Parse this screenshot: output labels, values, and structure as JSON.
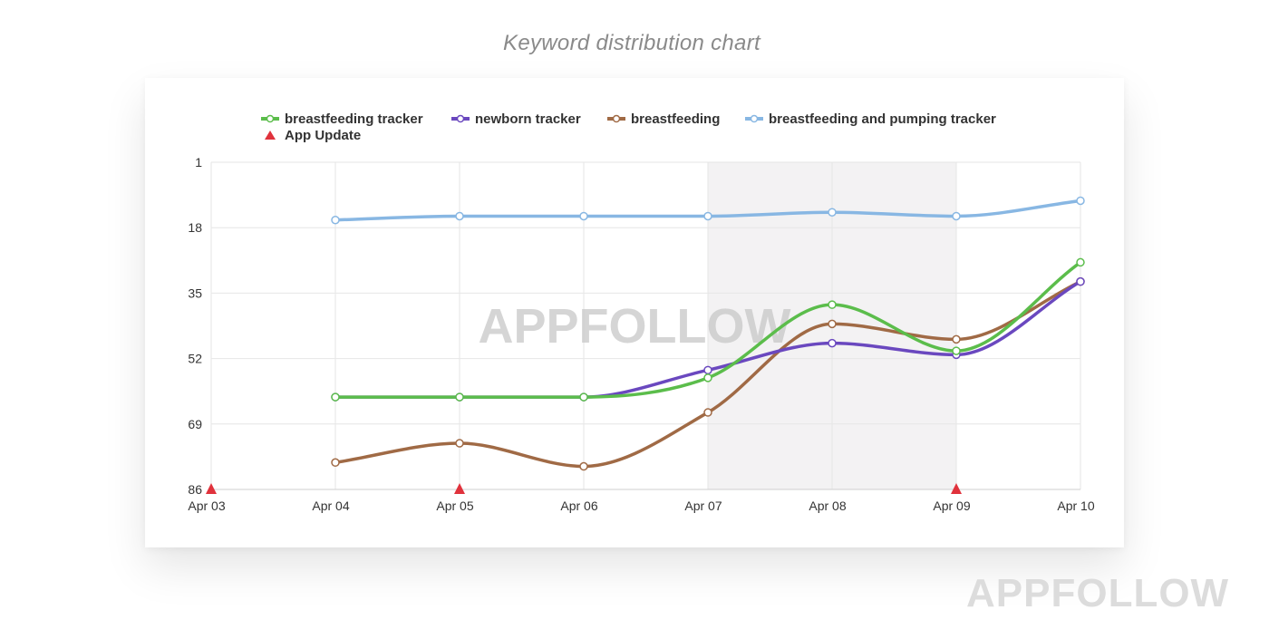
{
  "page": {
    "title": "Keyword distribution chart",
    "watermark": "APPFOLLOW",
    "chart_watermark": "APPFOLLOW"
  },
  "chart_data": {
    "type": "line",
    "title": "",
    "xlabel": "",
    "ylabel": "",
    "categories": [
      "Apr 03",
      "Apr 04",
      "Apr 05",
      "Apr 06",
      "Apr 07",
      "Apr 08",
      "Apr 09",
      "Apr 10"
    ],
    "y_ticks": [
      1,
      18,
      35,
      52,
      69,
      86
    ],
    "ylim": [
      1,
      86
    ],
    "y_inverted": true,
    "grid": true,
    "legend_position": "top-left",
    "highlight_range": [
      "Apr 07",
      "Apr 09"
    ],
    "series": [
      {
        "name": "breastfeeding tracker",
        "color": "#5bbd4b",
        "values": [
          null,
          62,
          62,
          62,
          57,
          38,
          50,
          27
        ]
      },
      {
        "name": "newborn tracker",
        "color": "#6a48bf",
        "values": [
          null,
          62,
          62,
          62,
          55,
          48,
          51,
          32
        ]
      },
      {
        "name": "breastfeeding",
        "color": "#a06a45",
        "values": [
          null,
          79,
          74,
          80,
          66,
          43,
          47,
          32
        ]
      },
      {
        "name": "breastfeeding and pumping tracker",
        "color": "#88b7e3",
        "values": [
          null,
          16,
          15,
          15,
          15,
          14,
          15,
          11
        ]
      }
    ],
    "events": {
      "name": "App Update",
      "color": "#e0323c",
      "dates": [
        "Apr 03",
        "Apr 05",
        "Apr 09"
      ]
    }
  }
}
